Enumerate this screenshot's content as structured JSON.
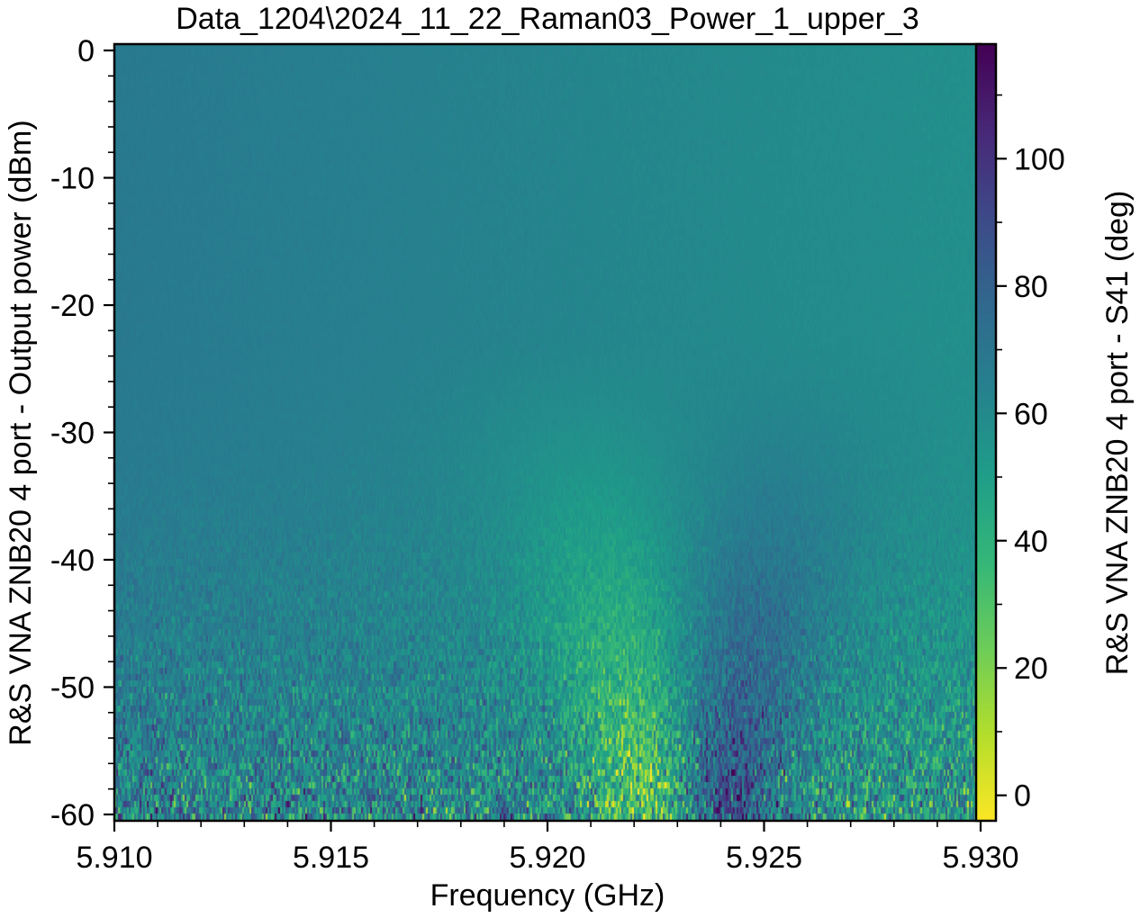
{
  "chart_data": {
    "type": "heatmap",
    "title": "Data_1204\\2024_11_22_Raman03_Power_1_upper_3",
    "xlabel": "Frequency (GHz)",
    "ylabel": "R&S VNA ZNB20 4 port - Output power (dBm)",
    "colorbar_label": "R&S VNA ZNB20 4 port - S41 (deg)",
    "xlim": [
      5.91,
      5.93
    ],
    "ylim": [
      -60.5,
      0.5
    ],
    "clim": [
      -4,
      118
    ],
    "colormap": "viridis_r",
    "x_ticks": [
      5.91,
      5.915,
      5.92,
      5.925,
      5.93
    ],
    "x_tick_labels": [
      "5.910",
      "5.915",
      "5.920",
      "5.925",
      "5.930"
    ],
    "y_ticks": [
      0,
      -10,
      -20,
      -30,
      -40,
      -50,
      -60
    ],
    "y_tick_labels": [
      "0",
      "-10",
      "-20",
      "-30",
      "-40",
      "-50",
      "-60"
    ],
    "colorbar_ticks": [
      0,
      20,
      40,
      60,
      80,
      100
    ],
    "colorbar_tick_labels": [
      "0",
      "20",
      "40",
      "60",
      "80",
      "100"
    ],
    "resonance_frequency": 5.9232,
    "background_phase_upper_left": 68,
    "background_phase_right": 57,
    "resonance_dip_min": 14,
    "resonance_peak_max": 98
  }
}
